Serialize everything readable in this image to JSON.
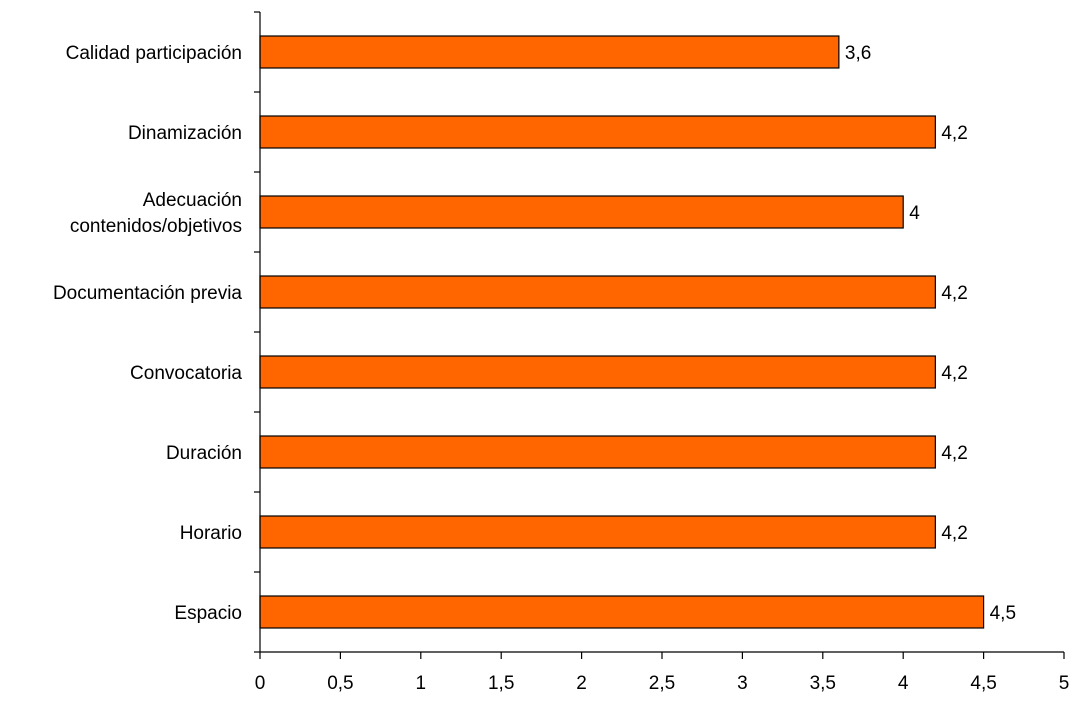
{
  "chart_data": {
    "type": "bar",
    "orientation": "horizontal",
    "categories": [
      "Calidad participación",
      "Dinamización",
      "Adecuación contenidos/objetivos",
      "Documentación previa",
      "Convocatoria",
      "Duración",
      "Horario",
      "Espacio"
    ],
    "category_label_lines": [
      [
        "Calidad participación"
      ],
      [
        "Dinamización"
      ],
      [
        "Adecuación",
        "contenidos/objetivos"
      ],
      [
        "Documentación previa"
      ],
      [
        "Convocatoria"
      ],
      [
        "Duración"
      ],
      [
        "Horario"
      ],
      [
        "Espacio"
      ]
    ],
    "values": [
      3.6,
      4.2,
      4,
      4.2,
      4.2,
      4.2,
      4.2,
      4.5
    ],
    "data_labels": [
      "3,6",
      "4,2",
      "4",
      "4,2",
      "4,2",
      "4,2",
      "4,2",
      "4,5"
    ],
    "title": "",
    "xlabel": "",
    "ylabel": "",
    "xlim": [
      0,
      5
    ],
    "x_ticks": [
      0,
      0.5,
      1,
      1.5,
      2,
      2.5,
      3,
      3.5,
      4,
      4.5,
      5
    ],
    "x_tick_labels": [
      "0",
      "0,5",
      "1",
      "1,5",
      "2",
      "2,5",
      "3",
      "3,5",
      "4",
      "4,5",
      "5"
    ],
    "grid": false,
    "legend": "none",
    "bar_color": "#ff6600",
    "bar_edge_color": "#000000"
  }
}
